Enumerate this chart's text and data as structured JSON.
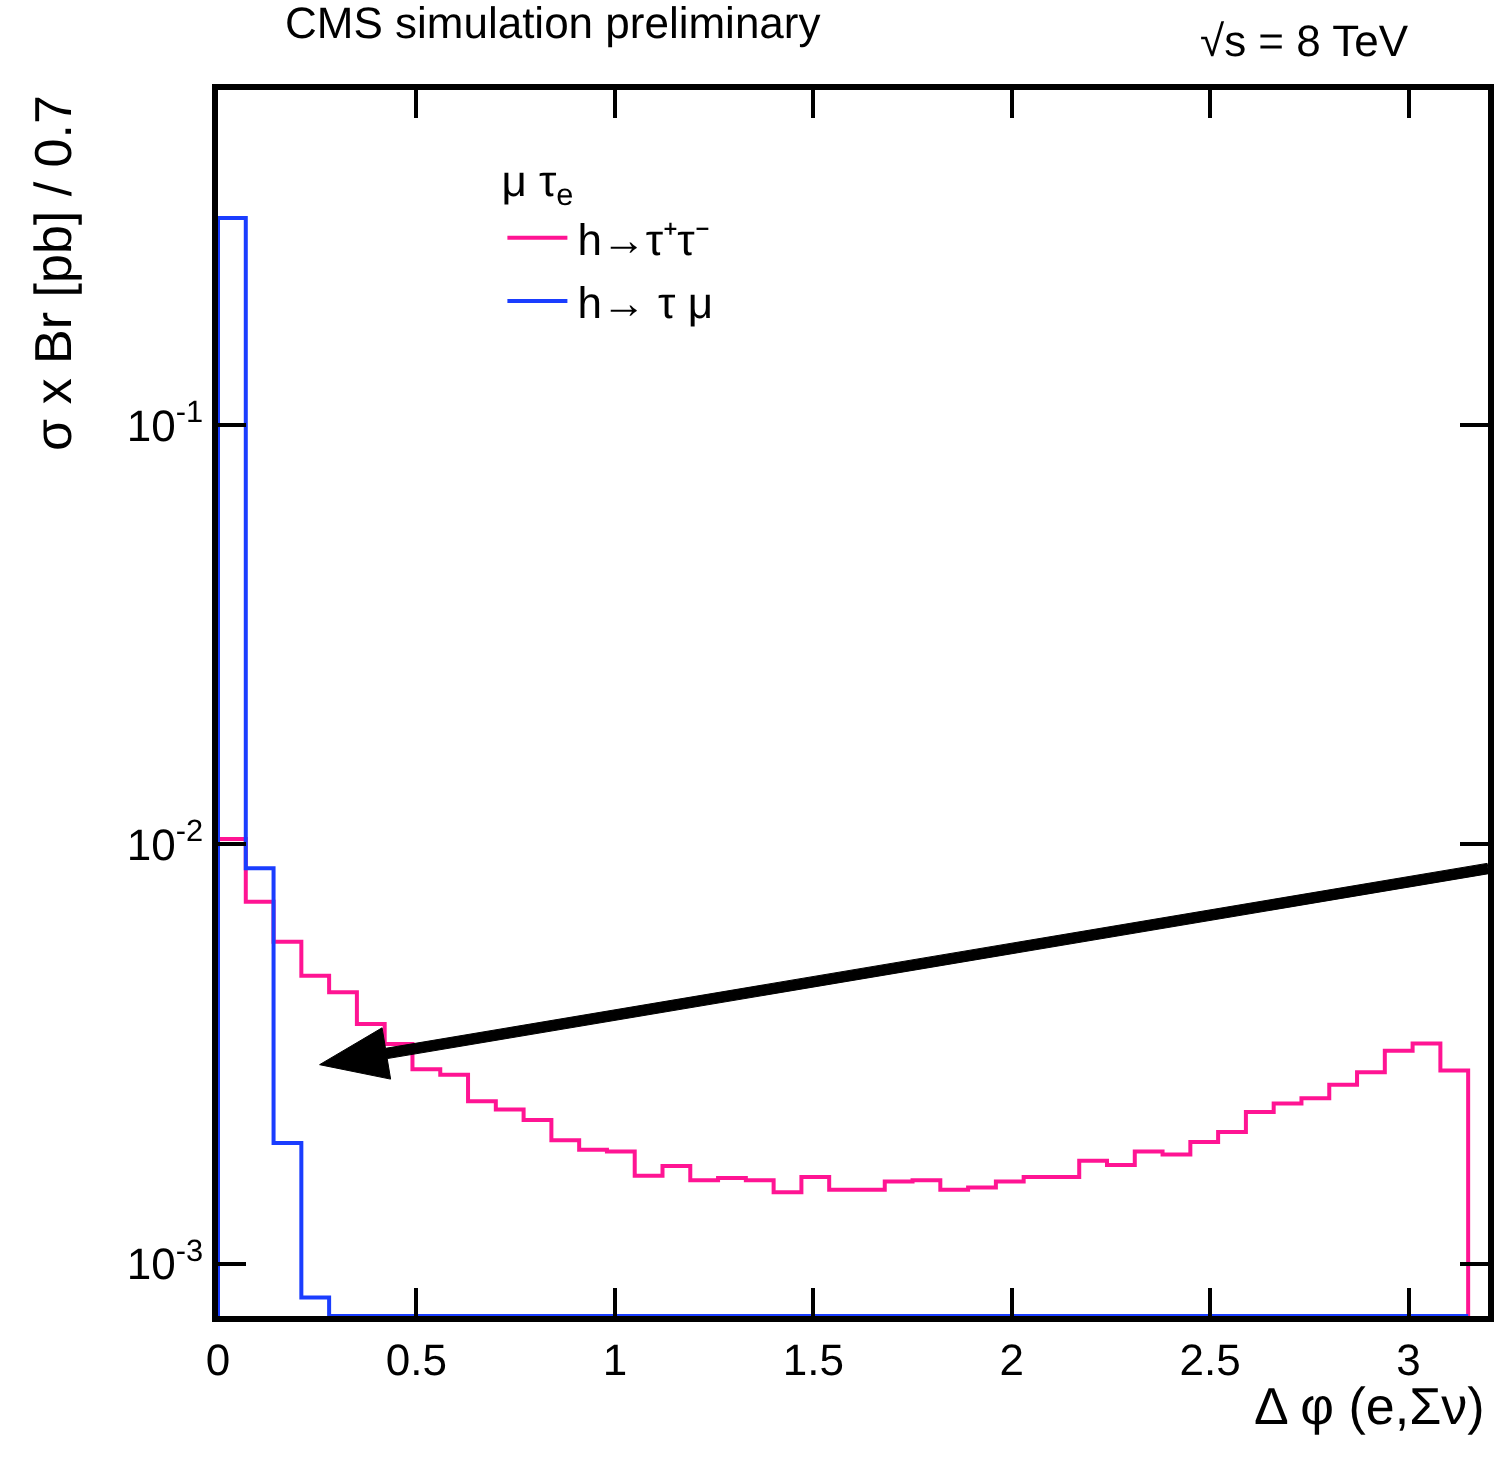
{
  "chart_data": {
    "type": "histogram",
    "title": "CMS simulation preliminary",
    "annotations": [
      "√s = 8 TeV"
    ],
    "xlabel": "Δ φ (e,Σν)",
    "ylabel": "σ x Br [pb] / 0.7",
    "legend_title": "μ τ$_{e}$",
    "legend": "top left",
    "log": true,
    "bins": [
      0,
      0.07,
      0.14,
      0.21,
      0.28,
      0.35,
      0.42,
      0.49,
      0.56,
      0.63,
      0.7,
      0.77,
      0.84,
      0.91,
      0.98,
      1.05,
      1.12,
      1.19,
      1.26,
      1.33,
      1.4,
      1.47,
      1.54,
      1.61,
      1.68,
      1.75,
      1.82,
      1.89,
      1.96,
      2.03,
      2.1,
      2.17,
      2.24,
      2.31,
      2.38,
      2.45,
      2.52,
      2.59,
      2.66,
      2.73,
      2.8,
      2.87,
      2.94,
      3.01,
      3.08,
      3.15
    ],
    "series": [
      {
        "name": "h→τ⁺τ⁻",
        "color": "#ff1493",
        "values": [
          0.0103,
          0.0073,
          0.00586,
          0.00486,
          0.00444,
          0.00373,
          0.00334,
          0.00291,
          0.00282,
          0.00244,
          0.00233,
          0.0022,
          0.00197,
          0.00187,
          0.00185,
          0.00162,
          0.00171,
          0.00158,
          0.0016,
          0.00158,
          0.00148,
          0.00161,
          0.0015,
          0.0015,
          0.00157,
          0.00158,
          0.0015,
          0.00152,
          0.00157,
          0.00161,
          0.00161,
          0.00176,
          0.00172,
          0.00185,
          0.00182,
          0.00195,
          0.00206,
          0.0023,
          0.00241,
          0.00248,
          0.00267,
          0.00286,
          0.00322,
          0.00335,
          0.00289
        ]
      },
      {
        "name": "h→ τ μ",
        "color": "#1a3dff",
        "values": [
          0.312,
          0.00877,
          0.00194,
          0.00083,
          null,
          null,
          null,
          null,
          null,
          null,
          null,
          null,
          null,
          null,
          null,
          null,
          null,
          null,
          null,
          null,
          null,
          null,
          null,
          null,
          null,
          null,
          null,
          null,
          null,
          null,
          null,
          null,
          null,
          null,
          null,
          null,
          null,
          null,
          null,
          null,
          null,
          null,
          null,
          null,
          null
        ]
      }
    ],
    "xlim": [
      0,
      3.2
    ],
    "xticks": [
      0,
      0.5,
      1,
      1.5,
      2,
      2.5,
      3
    ],
    "ylim": [
      0.00075,
      0.63
    ],
    "yticks": [
      {
        "value": 0.001,
        "label": "10$^{-3}$"
      },
      {
        "value": 0.01,
        "label": "10$^{-2}$"
      },
      {
        "value": 0.1,
        "label": "10$^{-1}$"
      }
    ]
  }
}
